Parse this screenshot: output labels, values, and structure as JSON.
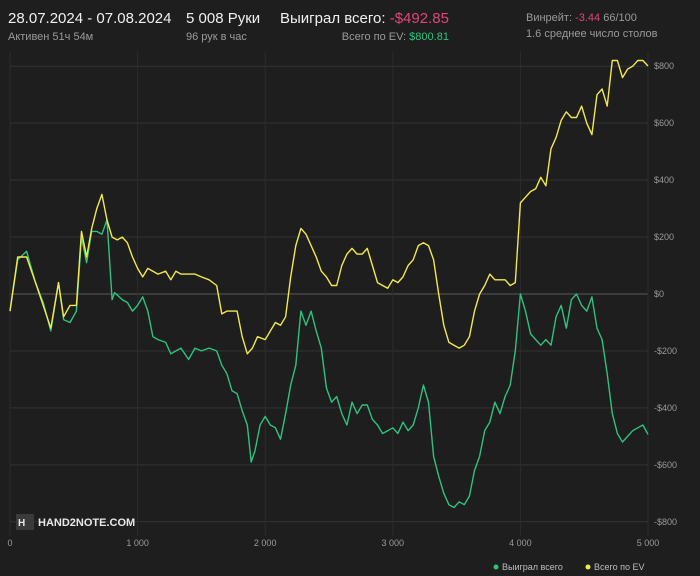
{
  "header": {
    "date_range": "28.07.2024 - 07.08.2024",
    "active": "Активен 51ч 54м",
    "hands": "5 008 Руки",
    "hands_per_hour": "96 рук в час",
    "won_label": "Выиграл всего:",
    "won_value": "-$492.85",
    "ev_label": "Всего по EV:",
    "ev_value": "$800.81",
    "winrate_label": "Винрейт:",
    "winrate_value": "-3.44",
    "winrate_unit": "66/100",
    "avg_tables": "1.6 среднее число столов"
  },
  "logo": "HAND2NOTE.COM",
  "colors": {
    "won": "#2ec27e",
    "ev": "#f2e94e",
    "negative": "#e0457b"
  },
  "chart_data": {
    "type": "line",
    "title": "",
    "xlabel": "",
    "ylabel": "",
    "xlim": [
      0,
      5000
    ],
    "ylim": [
      -850,
      850
    ],
    "x_ticks": [
      0,
      1000,
      2000,
      3000,
      4000,
      5000
    ],
    "x_tick_labels": [
      "0",
      "1 000",
      "2 000",
      "3 000",
      "4 000",
      "5 000"
    ],
    "y_ticks": [
      800,
      600,
      400,
      200,
      0,
      -200,
      -400,
      -600,
      -800
    ],
    "y_tick_labels": [
      "$800",
      "$600",
      "$400",
      "$200",
      "$0",
      "-$200",
      "-$400",
      "-$600",
      "-$800"
    ],
    "grid": true,
    "legend_position": "bottom-right",
    "series": [
      {
        "name": "Выиграл всего",
        "color": "#2ec27e",
        "points": [
          [
            0,
            -60
          ],
          [
            60,
            120
          ],
          [
            130,
            150
          ],
          [
            200,
            40
          ],
          [
            260,
            -30
          ],
          [
            320,
            -130
          ],
          [
            380,
            40
          ],
          [
            420,
            -90
          ],
          [
            470,
            -100
          ],
          [
            520,
            -60
          ],
          [
            560,
            200
          ],
          [
            600,
            110
          ],
          [
            640,
            220
          ],
          [
            680,
            220
          ],
          [
            720,
            210
          ],
          [
            760,
            260
          ],
          [
            800,
            -20
          ],
          [
            820,
            5
          ],
          [
            880,
            -20
          ],
          [
            920,
            -30
          ],
          [
            960,
            -60
          ],
          [
            1000,
            -40
          ],
          [
            1040,
            -10
          ],
          [
            1080,
            -60
          ],
          [
            1120,
            -150
          ],
          [
            1160,
            -160
          ],
          [
            1220,
            -170
          ],
          [
            1260,
            -210
          ],
          [
            1300,
            -200
          ],
          [
            1340,
            -190
          ],
          [
            1400,
            -230
          ],
          [
            1450,
            -190
          ],
          [
            1500,
            -200
          ],
          [
            1560,
            -190
          ],
          [
            1620,
            -200
          ],
          [
            1660,
            -250
          ],
          [
            1700,
            -280
          ],
          [
            1740,
            -340
          ],
          [
            1780,
            -350
          ],
          [
            1820,
            -410
          ],
          [
            1860,
            -460
          ],
          [
            1890,
            -590
          ],
          [
            1920,
            -550
          ],
          [
            1960,
            -460
          ],
          [
            2000,
            -430
          ],
          [
            2040,
            -460
          ],
          [
            2080,
            -470
          ],
          [
            2120,
            -510
          ],
          [
            2160,
            -420
          ],
          [
            2200,
            -320
          ],
          [
            2240,
            -250
          ],
          [
            2280,
            -60
          ],
          [
            2320,
            -110
          ],
          [
            2360,
            -60
          ],
          [
            2400,
            -130
          ],
          [
            2440,
            -190
          ],
          [
            2480,
            -330
          ],
          [
            2520,
            -380
          ],
          [
            2560,
            -360
          ],
          [
            2600,
            -420
          ],
          [
            2640,
            -460
          ],
          [
            2680,
            -380
          ],
          [
            2720,
            -420
          ],
          [
            2760,
            -390
          ],
          [
            2800,
            -390
          ],
          [
            2840,
            -440
          ],
          [
            2880,
            -460
          ],
          [
            2920,
            -490
          ],
          [
            2960,
            -480
          ],
          [
            3000,
            -470
          ],
          [
            3040,
            -490
          ],
          [
            3080,
            -450
          ],
          [
            3120,
            -480
          ],
          [
            3160,
            -460
          ],
          [
            3200,
            -400
          ],
          [
            3240,
            -320
          ],
          [
            3280,
            -380
          ],
          [
            3320,
            -570
          ],
          [
            3360,
            -640
          ],
          [
            3400,
            -700
          ],
          [
            3440,
            -740
          ],
          [
            3480,
            -750
          ],
          [
            3520,
            -730
          ],
          [
            3560,
            -740
          ],
          [
            3600,
            -710
          ],
          [
            3640,
            -620
          ],
          [
            3680,
            -570
          ],
          [
            3720,
            -480
          ],
          [
            3760,
            -450
          ],
          [
            3800,
            -380
          ],
          [
            3840,
            -420
          ],
          [
            3880,
            -360
          ],
          [
            3920,
            -320
          ],
          [
            3960,
            -200
          ],
          [
            4000,
            0
          ],
          [
            4040,
            -60
          ],
          [
            4080,
            -140
          ],
          [
            4120,
            -160
          ],
          [
            4160,
            -180
          ],
          [
            4200,
            -160
          ],
          [
            4240,
            -180
          ],
          [
            4280,
            -80
          ],
          [
            4320,
            -40
          ],
          [
            4360,
            -120
          ],
          [
            4400,
            -20
          ],
          [
            4440,
            0
          ],
          [
            4480,
            -40
          ],
          [
            4520,
            -60
          ],
          [
            4560,
            -10
          ],
          [
            4600,
            -120
          ],
          [
            4640,
            -160
          ],
          [
            4680,
            -280
          ],
          [
            4720,
            -420
          ],
          [
            4760,
            -490
          ],
          [
            4800,
            -520
          ],
          [
            4840,
            -500
          ],
          [
            4880,
            -480
          ],
          [
            4920,
            -470
          ],
          [
            4960,
            -460
          ],
          [
            5000,
            -493
          ]
        ]
      },
      {
        "name": "Всего по EV",
        "color": "#f2e94e",
        "points": [
          [
            0,
            -60
          ],
          [
            60,
            130
          ],
          [
            130,
            130
          ],
          [
            200,
            40
          ],
          [
            260,
            -40
          ],
          [
            320,
            -120
          ],
          [
            380,
            40
          ],
          [
            420,
            -80
          ],
          [
            470,
            -40
          ],
          [
            520,
            -40
          ],
          [
            560,
            220
          ],
          [
            600,
            130
          ],
          [
            640,
            230
          ],
          [
            680,
            300
          ],
          [
            720,
            350
          ],
          [
            760,
            260
          ],
          [
            800,
            200
          ],
          [
            840,
            190
          ],
          [
            880,
            200
          ],
          [
            920,
            180
          ],
          [
            960,
            130
          ],
          [
            1000,
            90
          ],
          [
            1040,
            60
          ],
          [
            1080,
            90
          ],
          [
            1120,
            80
          ],
          [
            1160,
            70
          ],
          [
            1220,
            80
          ],
          [
            1260,
            50
          ],
          [
            1300,
            80
          ],
          [
            1340,
            70
          ],
          [
            1400,
            70
          ],
          [
            1450,
            70
          ],
          [
            1500,
            60
          ],
          [
            1560,
            50
          ],
          [
            1620,
            30
          ],
          [
            1660,
            -70
          ],
          [
            1700,
            -60
          ],
          [
            1740,
            -60
          ],
          [
            1780,
            -60
          ],
          [
            1820,
            -150
          ],
          [
            1860,
            -210
          ],
          [
            1900,
            -190
          ],
          [
            1940,
            -150
          ],
          [
            2000,
            -160
          ],
          [
            2040,
            -130
          ],
          [
            2080,
            -100
          ],
          [
            2120,
            -110
          ],
          [
            2160,
            -80
          ],
          [
            2200,
            60
          ],
          [
            2240,
            170
          ],
          [
            2280,
            230
          ],
          [
            2320,
            210
          ],
          [
            2360,
            170
          ],
          [
            2400,
            130
          ],
          [
            2440,
            80
          ],
          [
            2480,
            60
          ],
          [
            2520,
            30
          ],
          [
            2560,
            30
          ],
          [
            2600,
            100
          ],
          [
            2640,
            140
          ],
          [
            2680,
            160
          ],
          [
            2720,
            140
          ],
          [
            2760,
            140
          ],
          [
            2800,
            160
          ],
          [
            2840,
            100
          ],
          [
            2880,
            40
          ],
          [
            2920,
            30
          ],
          [
            2960,
            20
          ],
          [
            3000,
            50
          ],
          [
            3040,
            40
          ],
          [
            3080,
            60
          ],
          [
            3120,
            100
          ],
          [
            3160,
            120
          ],
          [
            3200,
            170
          ],
          [
            3240,
            180
          ],
          [
            3280,
            170
          ],
          [
            3320,
            120
          ],
          [
            3360,
            0
          ],
          [
            3400,
            -110
          ],
          [
            3440,
            -170
          ],
          [
            3480,
            -180
          ],
          [
            3520,
            -190
          ],
          [
            3560,
            -180
          ],
          [
            3600,
            -150
          ],
          [
            3640,
            -60
          ],
          [
            3680,
            0
          ],
          [
            3720,
            30
          ],
          [
            3760,
            70
          ],
          [
            3800,
            50
          ],
          [
            3840,
            50
          ],
          [
            3880,
            50
          ],
          [
            3920,
            30
          ],
          [
            3960,
            40
          ],
          [
            4000,
            320
          ],
          [
            4040,
            340
          ],
          [
            4080,
            360
          ],
          [
            4120,
            370
          ],
          [
            4160,
            410
          ],
          [
            4200,
            380
          ],
          [
            4240,
            510
          ],
          [
            4280,
            550
          ],
          [
            4320,
            610
          ],
          [
            4360,
            640
          ],
          [
            4400,
            620
          ],
          [
            4440,
            620
          ],
          [
            4480,
            660
          ],
          [
            4520,
            600
          ],
          [
            4560,
            560
          ],
          [
            4600,
            700
          ],
          [
            4640,
            720
          ],
          [
            4680,
            660
          ],
          [
            4720,
            820
          ],
          [
            4760,
            820
          ],
          [
            4800,
            760
          ],
          [
            4840,
            790
          ],
          [
            4880,
            800
          ],
          [
            4920,
            820
          ],
          [
            4960,
            820
          ],
          [
            5000,
            801
          ]
        ]
      }
    ]
  }
}
